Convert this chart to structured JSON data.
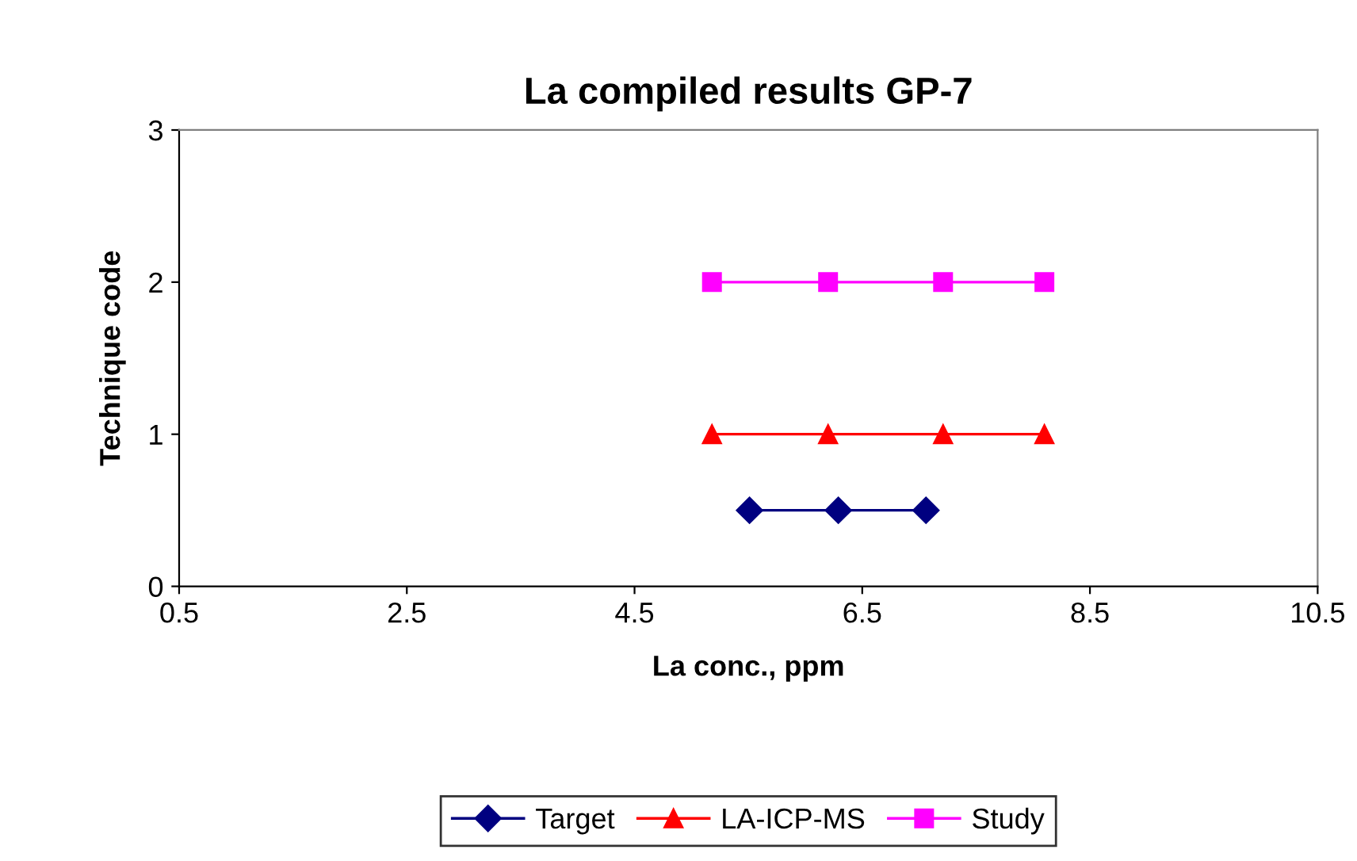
{
  "chart_data": {
    "type": "line",
    "title": "La compiled results GP-7",
    "xlabel": "La conc., ppm",
    "ylabel": "Technique code",
    "xlim": [
      0.5,
      10.5
    ],
    "xticks": [
      0.5,
      2.5,
      4.5,
      6.5,
      8.5,
      10.5
    ],
    "ylim": [
      0,
      3
    ],
    "yticks": [
      0,
      1,
      2,
      3
    ],
    "grid": false,
    "legend": "bottom",
    "series": [
      {
        "name": "Target",
        "color": "#000080",
        "marker": "diamond",
        "x": [
          5.51,
          6.29,
          7.06
        ],
        "values": [
          0.5,
          0.5,
          0.5
        ]
      },
      {
        "name": "LA-ICP-MS",
        "color": "#ff0000",
        "marker": "triangle",
        "x": [
          5.18,
          6.2,
          7.21,
          8.1
        ],
        "values": [
          1,
          1,
          1,
          1
        ]
      },
      {
        "name": "Study",
        "color": "#ff00ff",
        "marker": "square",
        "x": [
          5.18,
          6.2,
          7.21,
          8.1
        ],
        "values": [
          2,
          2,
          2,
          2
        ]
      }
    ]
  }
}
